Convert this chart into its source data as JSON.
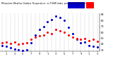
{
  "title_line1": "Milwaukee Weather Outdoor Temperature",
  "title_line2": "vs THSW Index  per Hour  (24 Hours)",
  "hours": [
    0,
    1,
    2,
    3,
    4,
    5,
    6,
    7,
    8,
    9,
    10,
    11,
    12,
    13,
    14,
    15,
    16,
    17,
    18,
    19,
    20,
    21,
    22,
    23
  ],
  "temp": [
    42,
    44,
    41,
    43,
    40,
    41,
    42,
    48,
    52,
    54,
    55,
    60,
    58,
    65,
    62,
    60,
    55,
    52,
    50,
    48,
    50,
    46,
    48,
    45
  ],
  "thsw": [
    38,
    36,
    34,
    32,
    30,
    29,
    31,
    42,
    55,
    65,
    70,
    78,
    82,
    88,
    85,
    80,
    68,
    58,
    48,
    42,
    44,
    38,
    36,
    35
  ],
  "temp_color": "#ff0000",
  "thsw_color": "#0000cc",
  "background": "#ffffff",
  "grid_color": "#888888",
  "ylim_min": 28,
  "ylim_max": 92,
  "yticks": [
    30,
    40,
    50,
    60,
    70,
    80,
    90
  ],
  "ytick_labels": [
    "30",
    "40",
    "50",
    "60",
    "70",
    "80",
    "90"
  ],
  "xticks": [
    1,
    3,
    5,
    7,
    9,
    11,
    13,
    15,
    17,
    19,
    21,
    23
  ],
  "xtick_labels": [
    "1",
    "3",
    "5",
    "7",
    "9",
    "1",
    "3",
    "5",
    "7",
    "9",
    "1",
    "3"
  ]
}
